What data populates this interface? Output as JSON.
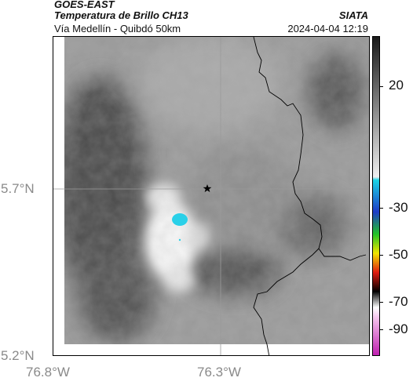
{
  "header": {
    "source": "GOES-EAST",
    "product": "Temperatura de Brillo CH13",
    "agency": "SIATA",
    "region": "Vía Medellín - Quibdó 50km",
    "datetime": "2024-04-04 12:19"
  },
  "axes": {
    "lat_labels": [
      "5.7°N",
      "5.2°N"
    ],
    "lon_labels": [
      "76.8°W",
      "76.3°W"
    ]
  },
  "colorbar": {
    "labels": [
      "20",
      "-30",
      "-50",
      "-70",
      "-90"
    ],
    "colors": {
      "warm_dark": "#1a1a1a",
      "warm_light": "#f0f0f0",
      "cyan": "#19d4e6",
      "blue": "#1e3cc8",
      "green": "#22c428",
      "yellow": "#f2e600",
      "red": "#e01a10",
      "black": "#000000",
      "magenta": "#c020b0"
    }
  },
  "map": {
    "marker": "star-icon",
    "colors": {
      "cloud_bright": "#f4f4f4",
      "cloud_dark": "#3d3d3d",
      "cold_core": "#2ad0e8",
      "border_line": "#000000",
      "grid_line": "#9a9a9a"
    }
  }
}
